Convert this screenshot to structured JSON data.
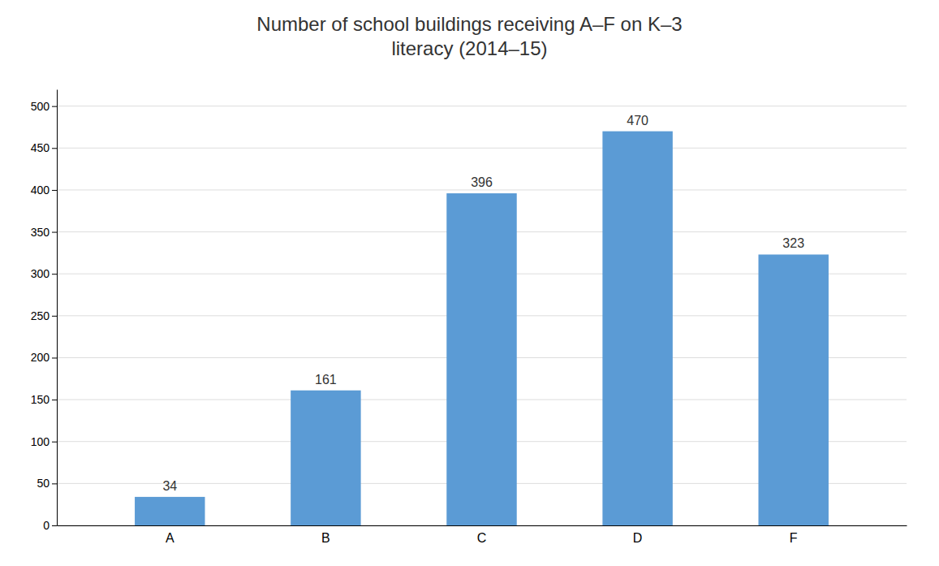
{
  "chart_data": {
    "type": "bar",
    "title": "Number of school buildings receiving A–F on K–3\nliteracy (2014–15)",
    "categories": [
      "A",
      "B",
      "C",
      "D",
      "F"
    ],
    "values": [
      34,
      161,
      396,
      470,
      323
    ],
    "color": "#5B9BD5",
    "ylim": [
      0,
      520
    ],
    "yticks": [
      0,
      50,
      100,
      150,
      200,
      250,
      300,
      350,
      400,
      450,
      500
    ],
    "grid": true,
    "data_labels": true
  }
}
